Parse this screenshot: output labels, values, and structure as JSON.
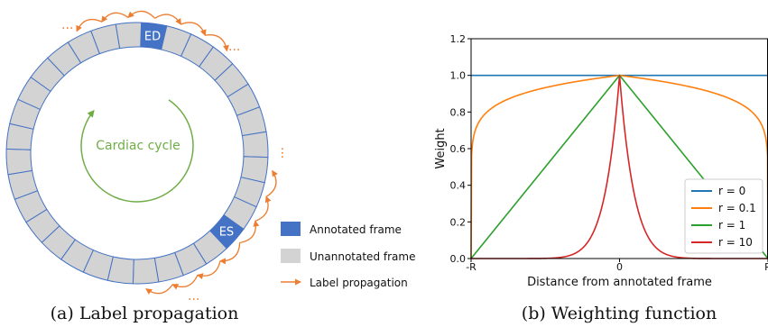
{
  "panel_a": {
    "caption": "(a) Label propagation",
    "center_label": "Cardiac cycle",
    "ed_label": "ED",
    "es_label": "ES",
    "frame_count": 32,
    "ed_index": 0,
    "es_index": 11,
    "ellipsis": "...",
    "legend": [
      {
        "label": "Annotated frame",
        "kind": "box",
        "color": "#4472c4"
      },
      {
        "label": "Unannotated frame",
        "kind": "box",
        "color": "#d3d3d3"
      },
      {
        "label": "Label propagation",
        "kind": "arrow",
        "color": "#ed7d31"
      }
    ],
    "colors": {
      "annotated": "#4472c4",
      "unannotated": "#d3d3d3",
      "ring_stroke": "#4472c4",
      "arrow": "#ed7d31",
      "cycle": "#70ad47"
    }
  },
  "panel_b": {
    "caption": "(b) Weighting function"
  },
  "chart_data": {
    "type": "line",
    "xlabel": "Distance from annotated frame",
    "ylabel": "Weight",
    "xlim": [
      -1,
      1
    ],
    "ylim": [
      0,
      1.2
    ],
    "xticks": [
      {
        "value": -1,
        "label": "-R"
      },
      {
        "value": 0,
        "label": "0"
      },
      {
        "value": 1,
        "label": "R"
      }
    ],
    "yticks": [
      "0.0",
      "0.2",
      "0.4",
      "0.6",
      "0.8",
      "1.0",
      "1.2"
    ],
    "legend_position": "bottom-right",
    "grid": false,
    "series": [
      {
        "name": "r = 0",
        "r": 0,
        "color": "#1f77b4"
      },
      {
        "name": "r = 0.1",
        "r": 0.1,
        "color": "#ff7f0e"
      },
      {
        "name": "r = 1",
        "r": 1,
        "color": "#2ca02c"
      },
      {
        "name": "r = 10",
        "r": 10,
        "color": "#d62728"
      }
    ]
  }
}
